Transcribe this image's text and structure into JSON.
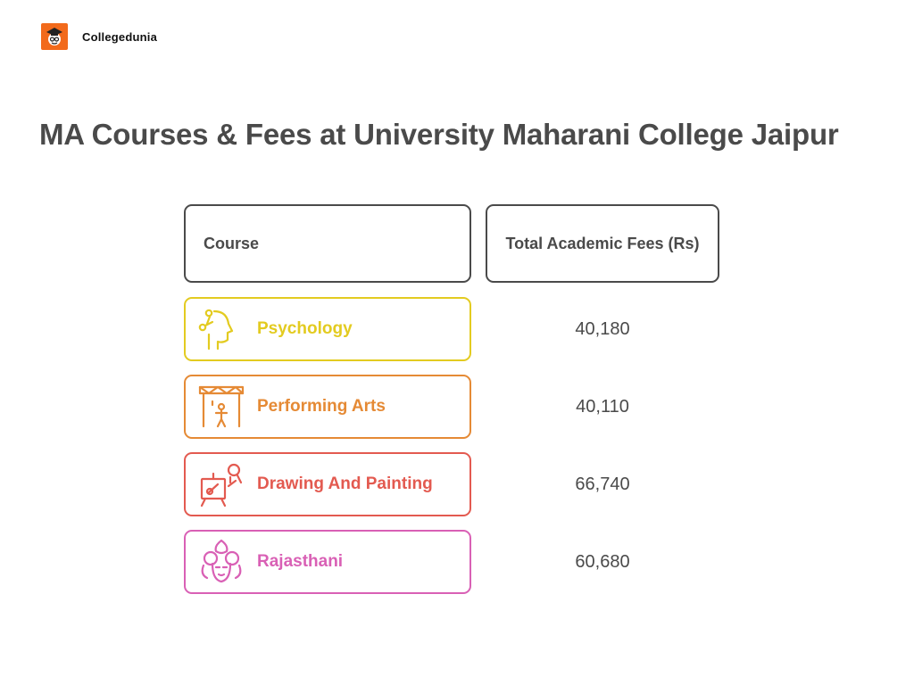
{
  "brand": {
    "name": "Collegedunia",
    "logo_icon": "collegedunia-logo-icon"
  },
  "title": "MA Courses & Fees at University Maharani College Jaipur",
  "table": {
    "headers": {
      "course": "Course",
      "fees": "Total Academic Fees (Rs)"
    },
    "rows": [
      {
        "course": "Psychology",
        "fee": "40,180",
        "color": "#e3cb20",
        "icon": "psychology-head-icon"
      },
      {
        "course": "Performing Arts",
        "fee": "40,110",
        "color": "#e58a35",
        "icon": "stage-performer-icon"
      },
      {
        "course": "Drawing And Painting",
        "fee": "66,740",
        "color": "#e35a50",
        "icon": "easel-painter-icon"
      },
      {
        "course": "Rajasthani",
        "fee": "60,680",
        "color": "#d960b5",
        "icon": "rajasthani-woman-icon"
      }
    ]
  }
}
